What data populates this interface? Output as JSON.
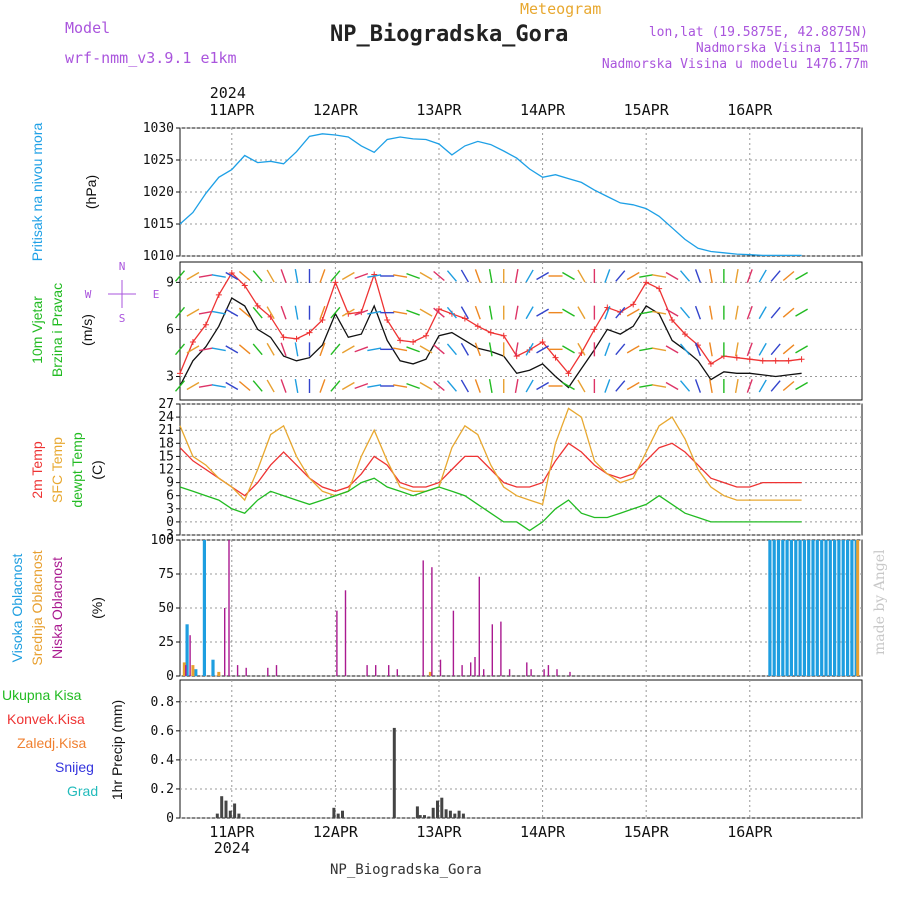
{
  "header": {
    "model_label": "Model",
    "model_name": "wrf-nmm_v3.9.1 e1km",
    "title": "NP_Biogradska_Gora",
    "meteogram_label": "Meteogram",
    "coords": "lon,lat (19.5875E, 42.8875N)",
    "elevation": "Nadmorska Visina 1115m",
    "model_elevation": "Nadmorska Visina u modelu 1476.77m",
    "footer": "NP_Biogradska_Gora",
    "credit": "made by Angel"
  },
  "colors": {
    "pressure": "#1ea0e6",
    "t2m": "#ee3333",
    "sfc": "#e8a830",
    "dewpt": "#22bb22",
    "wind_line": "#111111",
    "gust": "#ee3333",
    "high_cloud": "#1e9ee0",
    "mid_cloud": "#e8a030",
    "low_cloud": "#aa1a90",
    "precip_total": "#22bb22",
    "precip_conv": "#ee3333",
    "precip_frz": "#f08030",
    "snow": "#3333dd",
    "grad": "#22bbbb",
    "purple_text": "#aa55dd"
  },
  "chart_data": [
    {
      "type": "line",
      "id": "pressure",
      "year_label": "2024",
      "x_ticks": [
        "11APR",
        "12APR",
        "13APR",
        "14APR",
        "15APR",
        "16APR"
      ],
      "ylabel_parts": [
        "Pritisak na nivou mora",
        "(hPa)"
      ],
      "ylim": [
        1010,
        1030
      ],
      "yticks": [
        1010,
        1015,
        1020,
        1025,
        1030
      ],
      "grid": true,
      "series": [
        {
          "key": "pressure",
          "x": [
            0,
            3,
            6,
            9,
            12,
            15,
            18,
            21,
            24,
            27,
            30,
            33,
            36,
            39,
            42,
            45,
            48,
            51,
            54,
            57,
            60,
            63,
            66,
            69,
            72,
            75,
            78,
            81,
            84,
            87,
            90,
            93,
            96,
            99,
            102,
            105,
            108,
            111,
            114,
            117,
            120,
            123,
            126,
            129,
            132,
            135,
            138,
            141,
            144
          ],
          "values": [
            1015,
            1016.8,
            1019.8,
            1022.3,
            1023.5,
            1025.7,
            1024.6,
            1024.8,
            1024.4,
            1026.3,
            1028.7,
            1029.1,
            1028.9,
            1028.6,
            1027.2,
            1026.2,
            1028.2,
            1028.6,
            1028.3,
            1028.2,
            1027.5,
            1025.8,
            1027.2,
            1027.9,
            1027.4,
            1026.4,
            1025.3,
            1023.6,
            1022.3,
            1022.7,
            1022.1,
            1021.5,
            1020.3,
            1019.3,
            1018.3,
            1018,
            1017.4,
            1016.2,
            1014.4,
            1012.6,
            1011.2,
            1010.7,
            1010.5,
            1010.3,
            1010.2,
            1010.1,
            1010.1,
            1010.1,
            1010.1
          ]
        }
      ]
    },
    {
      "type": "line",
      "id": "wind",
      "ylabel_parts": [
        "10m Vjetar",
        "Brzina i Pravac",
        "(m/s)"
      ],
      "compass": {
        "n": "N",
        "s": "S",
        "w": "W",
        "e": "E"
      },
      "ylim": [
        1.5,
        10.3
      ],
      "yticks": [
        3,
        6,
        9
      ],
      "grid": true,
      "series": [
        {
          "key": "wind_speed",
          "name": "",
          "x": [
            0,
            3,
            6,
            9,
            12,
            15,
            18,
            21,
            24,
            27,
            30,
            33,
            36,
            39,
            42,
            45,
            48,
            51,
            54,
            57,
            60,
            63,
            66,
            69,
            72,
            75,
            78,
            81,
            84,
            87,
            90,
            93,
            96,
            99,
            102,
            105,
            108,
            111,
            114,
            117,
            120,
            123,
            126,
            129,
            132,
            135,
            138,
            141,
            144
          ],
          "values": [
            2.4,
            4,
            4.9,
            6.2,
            8,
            7.5,
            6,
            5.5,
            4.3,
            4,
            4.2,
            5,
            7,
            5.5,
            5.7,
            7.5,
            5.3,
            4,
            3.8,
            4.1,
            5.6,
            5.8,
            5.3,
            4.8,
            4.6,
            4.3,
            3.2,
            3.4,
            3.8,
            3,
            2.3,
            3.5,
            4.7,
            6,
            5.7,
            6.2,
            7.5,
            7,
            5.3,
            4.7,
            4,
            2.8,
            3.3,
            3.2,
            3.2,
            3.1,
            3,
            3.1,
            3.2
          ]
        },
        {
          "key": "gust",
          "name": "",
          "x": [
            0,
            3,
            6,
            9,
            12,
            15,
            18,
            21,
            24,
            27,
            30,
            33,
            36,
            39,
            42,
            45,
            48,
            51,
            54,
            57,
            60,
            63,
            66,
            69,
            72,
            75,
            78,
            81,
            84,
            87,
            90,
            93,
            96,
            99,
            102,
            105,
            108,
            111,
            114,
            117,
            120,
            123,
            126,
            129,
            132,
            135,
            138,
            141,
            144
          ],
          "values": [
            3.2,
            5.2,
            6.3,
            8.2,
            9.6,
            8.8,
            7.5,
            6.8,
            5.5,
            5.4,
            5.8,
            6.6,
            9,
            7,
            7.1,
            9.5,
            6.6,
            5.3,
            5.2,
            5.6,
            7.3,
            7,
            6.7,
            6.2,
            5.8,
            5.6,
            4.3,
            4.7,
            5.2,
            4.2,
            3.2,
            4.5,
            6,
            7.4,
            7.1,
            7.6,
            9,
            8.6,
            6.6,
            5.7,
            5,
            3.8,
            4.3,
            4.2,
            4.1,
            4,
            4,
            4,
            4.1
          ]
        }
      ],
      "direction_deg": [
        40,
        60,
        80,
        100,
        120,
        130,
        140,
        150,
        160,
        170,
        180,
        200,
        220,
        240,
        250,
        260,
        270,
        280,
        290,
        300,
        310,
        320,
        330,
        340,
        350,
        360,
        10,
        30,
        60,
        90,
        120,
        150,
        180,
        200,
        220,
        240,
        260,
        280,
        300,
        320,
        340,
        350,
        0,
        10,
        20,
        30,
        40,
        50,
        60
      ]
    },
    {
      "type": "line",
      "id": "temperature",
      "ylabel_parts": [
        "2m Temp",
        "SFC Temp",
        "dewpt Temp",
        "(C)"
      ],
      "ylim": [
        -3,
        27
      ],
      "yticks": [
        -3,
        0,
        3,
        6,
        9,
        12,
        15,
        18,
        21,
        24,
        27
      ],
      "grid": true,
      "series": [
        {
          "key": "t2m",
          "name": "2m Temp",
          "x": [
            0,
            3,
            6,
            9,
            12,
            15,
            18,
            21,
            24,
            27,
            30,
            33,
            36,
            39,
            42,
            45,
            48,
            51,
            54,
            57,
            60,
            63,
            66,
            69,
            72,
            75,
            78,
            81,
            84,
            87,
            90,
            93,
            96,
            99,
            102,
            105,
            108,
            111,
            114,
            117,
            120,
            123,
            126,
            129,
            132,
            135,
            138,
            141,
            144
          ],
          "values": [
            17,
            14,
            12,
            10,
            8,
            6,
            9,
            13,
            16,
            13,
            10,
            8,
            7,
            8,
            11,
            15,
            13,
            9,
            8,
            8,
            9,
            12,
            15,
            15,
            12,
            9,
            8,
            8,
            9,
            14,
            18,
            16,
            13,
            11,
            10,
            11,
            14,
            17,
            18,
            16,
            13,
            10,
            9,
            8,
            8,
            9,
            9,
            9,
            9
          ]
        },
        {
          "key": "sfc",
          "name": "SFC Temp",
          "x": [
            0,
            3,
            6,
            9,
            12,
            15,
            18,
            21,
            24,
            27,
            30,
            33,
            36,
            39,
            42,
            45,
            48,
            51,
            54,
            57,
            60,
            63,
            66,
            69,
            72,
            75,
            78,
            81,
            84,
            87,
            90,
            93,
            96,
            99,
            102,
            105,
            108,
            111,
            114,
            117,
            120,
            123,
            126,
            129,
            132,
            135,
            138,
            141,
            144
          ],
          "values": [
            22,
            15,
            13,
            10,
            8,
            5,
            12,
            20,
            22,
            15,
            10,
            7,
            6,
            7,
            15,
            21,
            14,
            8,
            7,
            7,
            8,
            17,
            22,
            20,
            13,
            8,
            6,
            5,
            4,
            18,
            26,
            24,
            14,
            11,
            9,
            10,
            16,
            22,
            24,
            19,
            12,
            8,
            6,
            5,
            5,
            5,
            5,
            5,
            5
          ]
        },
        {
          "key": "dewpt",
          "name": "dewpt Temp",
          "x": [
            0,
            3,
            6,
            9,
            12,
            15,
            18,
            21,
            24,
            27,
            30,
            33,
            36,
            39,
            42,
            45,
            48,
            51,
            54,
            57,
            60,
            63,
            66,
            69,
            72,
            75,
            78,
            81,
            84,
            87,
            90,
            93,
            96,
            99,
            102,
            105,
            108,
            111,
            114,
            117,
            120,
            123,
            126,
            129,
            132,
            135,
            138,
            141,
            144
          ],
          "values": [
            8,
            7,
            6,
            5,
            3,
            2,
            5,
            7,
            6,
            5,
            4,
            5,
            6,
            7,
            9,
            10,
            8,
            7,
            6,
            7,
            8,
            7,
            6,
            4,
            2,
            0,
            0,
            -2,
            0,
            3,
            5,
            2,
            1,
            1,
            2,
            3,
            4,
            6,
            4,
            2,
            1,
            0,
            0,
            0,
            0,
            0,
            0,
            0,
            0
          ]
        }
      ]
    },
    {
      "type": "bar",
      "id": "clouds",
      "ylabel_parts": [
        "Visoka Oblacnost",
        "Srednja Oblacnost",
        "Niska Oblacnost",
        "(%)"
      ],
      "ylim": [
        0,
        100
      ],
      "yticks": [
        0,
        25,
        50,
        75,
        100
      ],
      "grid": true,
      "series": [
        {
          "key": "high",
          "name": "Visoka Oblacnost",
          "x": [
            2,
            4,
            6,
            8,
            137,
            138,
            139,
            140,
            141,
            142,
            143,
            144,
            145,
            146,
            147,
            148,
            149,
            150,
            151,
            152,
            153,
            154,
            155,
            156,
            157
          ],
          "values": [
            38,
            5,
            100,
            12,
            100,
            100,
            100,
            100,
            100,
            100,
            100,
            100,
            100,
            100,
            100,
            100,
            100,
            100,
            100,
            100,
            100,
            100,
            100,
            100,
            100
          ]
        },
        {
          "key": "mid",
          "name": "Srednja Oblacnost",
          "x": [
            1,
            3,
            9,
            58,
            157
          ],
          "values": [
            10,
            8,
            3,
            3,
            100
          ]
        },
        {
          "key": "low",
          "name": "Niska Oblacnost",
          "x": [
            1,
            2,
            10,
            11,
            13,
            15,
            20,
            22,
            36,
            38,
            43,
            45,
            48,
            50,
            56,
            58,
            60,
            63,
            65,
            67,
            68,
            69,
            70,
            72,
            74,
            76,
            80,
            81,
            84,
            85,
            87,
            90
          ],
          "values": [
            8,
            30,
            50,
            100,
            8,
            6,
            6,
            8,
            48,
            63,
            8,
            8,
            8,
            5,
            85,
            80,
            12,
            48,
            8,
            10,
            14,
            73,
            5,
            38,
            40,
            5,
            10,
            5,
            5,
            8,
            5,
            3
          ]
        }
      ]
    },
    {
      "type": "bar",
      "id": "precip",
      "ylabel_parts": [
        "1hr Precip (mm)"
      ],
      "legend": [
        "Ukupna Kisa",
        "Konvek.Kisa",
        "Zaledj.Kisa",
        "Snijeg",
        "Grad"
      ],
      "x_ticks": [
        "11APR",
        "12APR",
        "13APR",
        "14APR",
        "15APR",
        "16APR"
      ],
      "year_label": "2024",
      "ylim": [
        0,
        0.95
      ],
      "yticks": [
        0,
        0.2,
        0.4,
        0.6,
        0.8
      ],
      "grid": true,
      "series": [
        {
          "key": "total",
          "name": "Ukupna Kisa",
          "x": [
            9,
            10,
            11,
            12,
            13,
            14,
            36,
            37,
            38,
            50,
            56,
            57,
            58,
            59,
            60,
            61,
            62,
            63,
            64,
            65,
            66
          ],
          "values": [
            0.03,
            0.15,
            0.12,
            0.05,
            0.1,
            0.03,
            0.07,
            0.03,
            0.05,
            0.62,
            0.02,
            0.02,
            0.01,
            0.07,
            0.12,
            0.14,
            0.06,
            0.05,
            0.03,
            0.05,
            0.03
          ]
        },
        {
          "key": "frz",
          "name": "Zaledj.Kisa",
          "x": [
            55
          ],
          "values": [
            0.08
          ]
        }
      ]
    }
  ]
}
